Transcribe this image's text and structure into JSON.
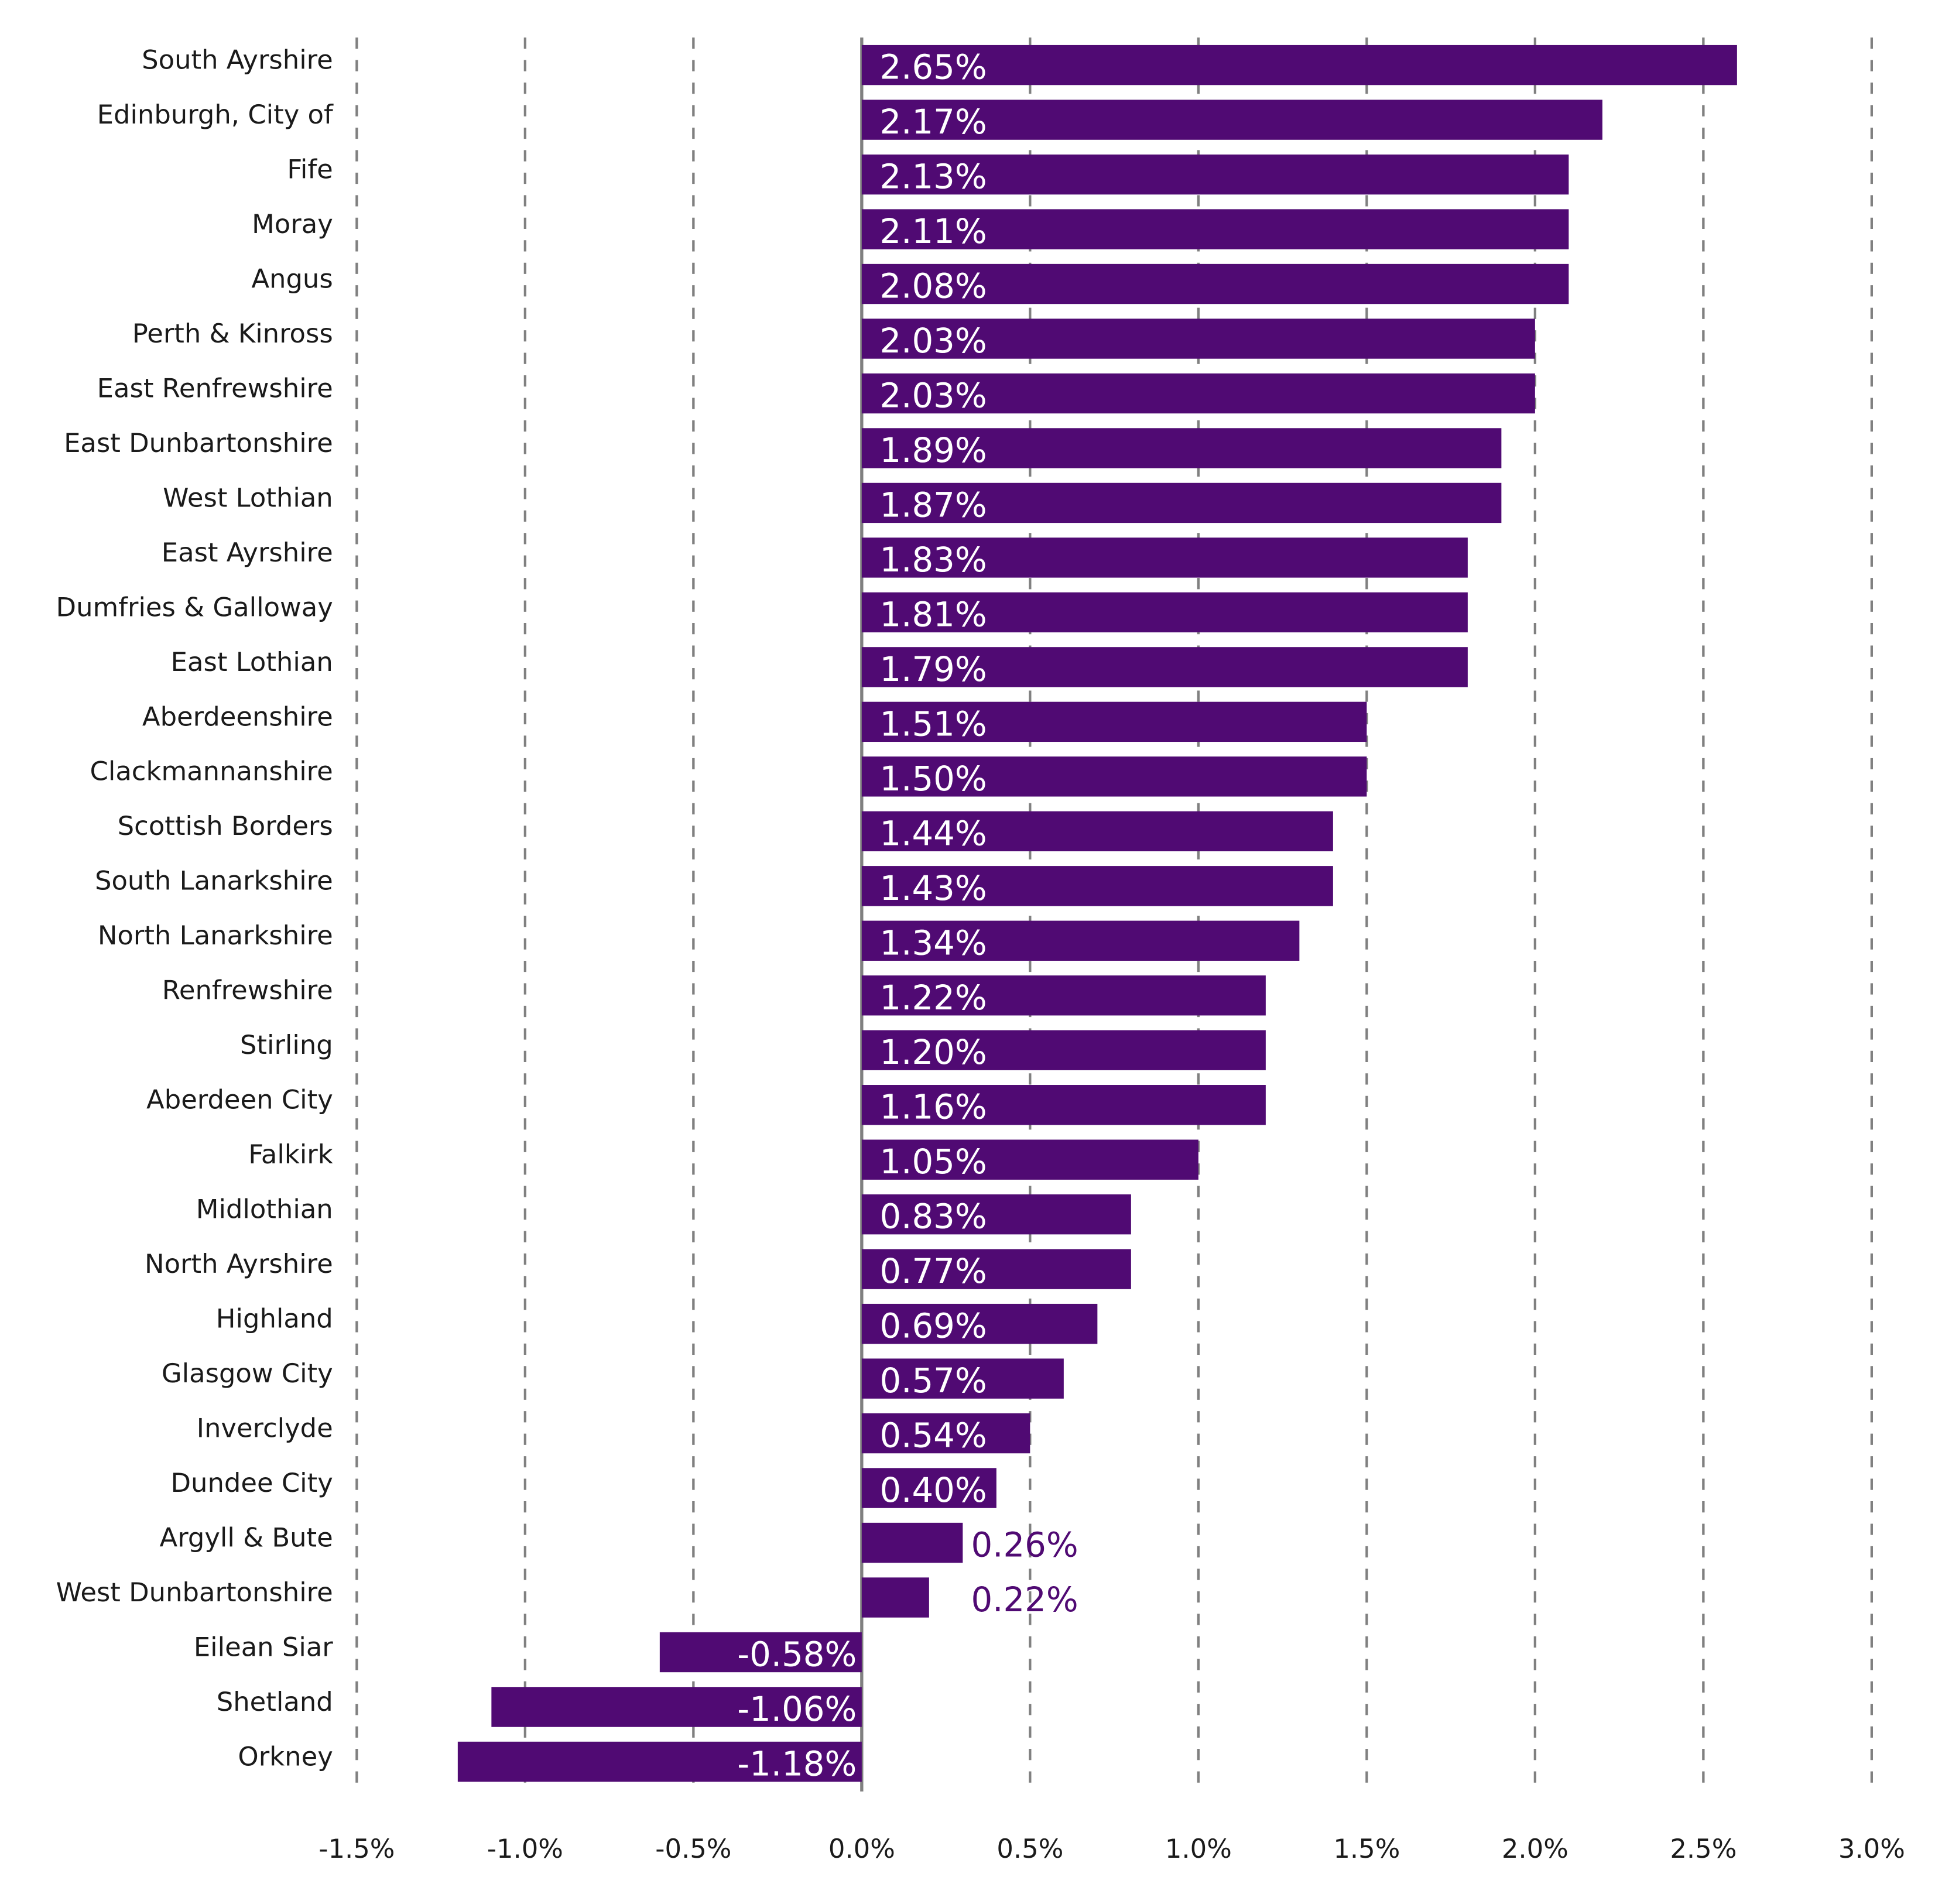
{
  "chart_data": {
    "type": "bar",
    "orientation": "horizontal",
    "categories": [
      "South Ayrshire",
      "Edinburgh, City of",
      "Fife",
      "Moray",
      "Angus",
      "Perth & Kinross",
      "East Renfrewshire",
      "East Dunbartonshire",
      "West Lothian",
      "East Ayrshire",
      "Dumfries & Galloway",
      "East Lothian",
      "Aberdeenshire",
      "Clackmannanshire",
      "Scottish Borders",
      "South Lanarkshire",
      "North Lanarkshire",
      "Renfrewshire",
      "Stirling",
      "Aberdeen City",
      "Falkirk",
      "Midlothian",
      "North Ayrshire",
      "Highland",
      "Glasgow City",
      "Inverclyde",
      "Dundee City",
      "Argyll & Bute",
      "West Dunbartonshire",
      "Eilean Siar",
      "Shetland",
      "Orkney"
    ],
    "values": [
      2.65,
      2.17,
      2.13,
      2.11,
      2.08,
      2.03,
      2.03,
      1.89,
      1.87,
      1.83,
      1.81,
      1.79,
      1.51,
      1.5,
      1.44,
      1.43,
      1.34,
      1.22,
      1.2,
      1.16,
      1.05,
      0.83,
      0.77,
      0.69,
      0.57,
      0.54,
      0.4,
      0.26,
      0.22,
      -0.58,
      -1.06,
      -1.18
    ],
    "bar_values": [
      2.6,
      2.2,
      2.1,
      2.1,
      2.1,
      2.0,
      2.0,
      1.9,
      1.9,
      1.8,
      1.8,
      1.8,
      1.5,
      1.5,
      1.4,
      1.4,
      1.3,
      1.2,
      1.2,
      1.2,
      1.0,
      0.8,
      0.8,
      0.7,
      0.6,
      0.5,
      0.4,
      0.3,
      0.2,
      -0.6,
      -1.1,
      -1.2
    ],
    "data_labels": [
      "2.65%",
      "2.17%",
      "2.13%",
      "2.11%",
      "2.08%",
      "2.03%",
      "2.03%",
      "1.89%",
      "1.87%",
      "1.83%",
      "1.81%",
      "1.79%",
      "1.51%",
      "1.50%",
      "1.44%",
      "1.43%",
      "1.34%",
      "1.22%",
      "1.20%",
      "1.16%",
      "1.05%",
      "0.83%",
      "0.77%",
      "0.69%",
      "0.57%",
      "0.54%",
      "0.40%",
      "0.26%",
      "0.22%",
      "-0.58%",
      "-1.06%",
      "-1.18%"
    ],
    "xlim": [
      -1.5,
      3.0
    ],
    "x_ticks": [
      -1.5,
      -1.0,
      -0.5,
      0.0,
      0.5,
      1.0,
      1.5,
      2.0,
      2.5,
      3.0
    ],
    "x_tick_labels": [
      "-1.5%",
      "-1.0%",
      "-0.5%",
      "0.0%",
      "0.5%",
      "1.0%",
      "1.5%",
      "2.0%",
      "2.5%",
      "3.0%"
    ],
    "grid": "vertical dashed",
    "legend": "none",
    "colors": {
      "bar": "#500a73",
      "grid": "#808080",
      "label_outside": "#500a73",
      "label_inside": "#ffffff"
    }
  }
}
